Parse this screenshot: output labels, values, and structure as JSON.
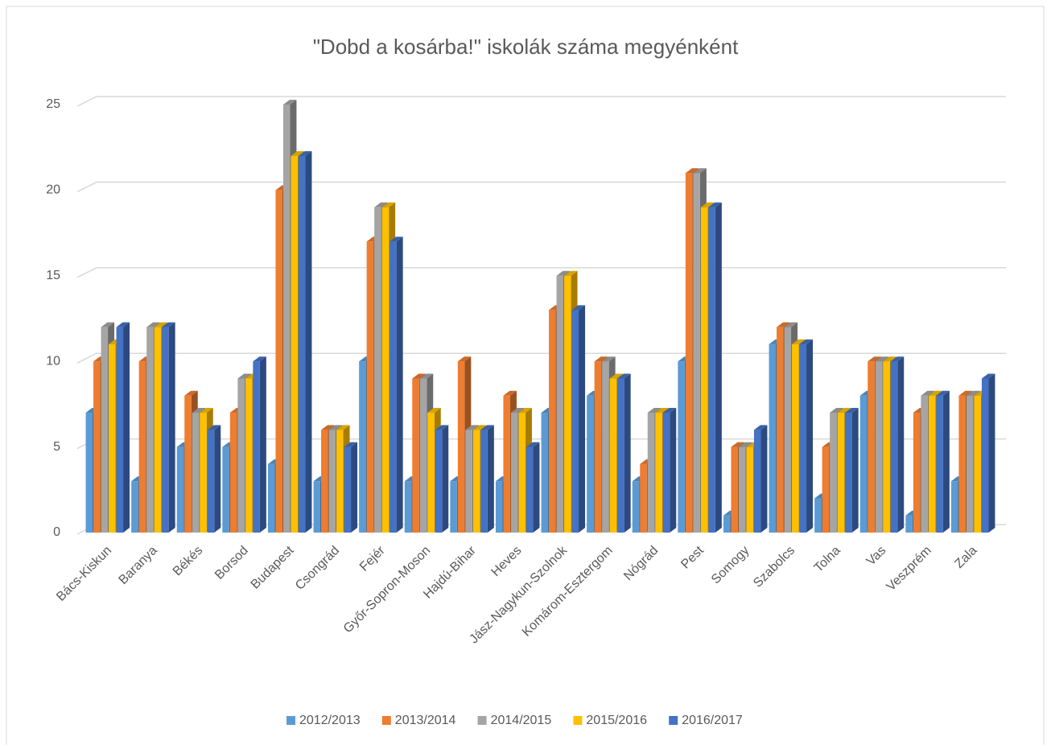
{
  "chart_data": {
    "type": "bar3d",
    "title": "\"Dobd a kosárba!\" iskolák száma megyénként",
    "categories": [
      "Bács-Kiskun",
      "Baranya",
      "Békés",
      "Borsod",
      "Budapest",
      "Csongrád",
      "Fejér",
      "Győr-Sopron-Moson",
      "Hajdú-Bihar",
      "Heves",
      "Jász-Nagykun-Szolnok",
      "Komárom-Esztergom",
      "Nógrád",
      "Pest",
      "Somogy",
      "Szabolcs",
      "Tolna",
      "Vas",
      "Veszprém",
      "Zala"
    ],
    "series": [
      {
        "name": "2012/2013",
        "color": "#5b9bd5",
        "values": [
          7,
          3,
          5,
          5,
          4,
          3,
          10,
          3,
          3,
          3,
          7,
          8,
          3,
          10,
          1,
          11,
          2,
          8,
          1,
          3
        ]
      },
      {
        "name": "2013/2014",
        "color": "#ed7d31",
        "values": [
          10,
          10,
          8,
          7,
          20,
          6,
          17,
          9,
          10,
          8,
          13,
          10,
          4,
          21,
          5,
          12,
          5,
          10,
          7,
          8
        ]
      },
      {
        "name": "2014/2015",
        "color": "#a5a5a5",
        "values": [
          12,
          12,
          7,
          9,
          25,
          6,
          19,
          9,
          6,
          7,
          15,
          10,
          7,
          21,
          5,
          12,
          7,
          10,
          8,
          8
        ]
      },
      {
        "name": "2015/2016",
        "color": "#ffc000",
        "values": [
          11,
          12,
          7,
          9,
          22,
          6,
          19,
          7,
          6,
          7,
          15,
          9,
          7,
          19,
          5,
          11,
          7,
          10,
          8,
          8
        ]
      },
      {
        "name": "2016/2017",
        "color": "#4472c4",
        "values": [
          12,
          12,
          6,
          10,
          22,
          5,
          17,
          6,
          6,
          5,
          13,
          9,
          7,
          19,
          6,
          11,
          7,
          10,
          8,
          9
        ]
      }
    ],
    "ylim": [
      0,
      25
    ],
    "yticks": [
      0,
      5,
      10,
      15,
      20,
      25
    ],
    "grid": true,
    "legend": "bottom"
  }
}
